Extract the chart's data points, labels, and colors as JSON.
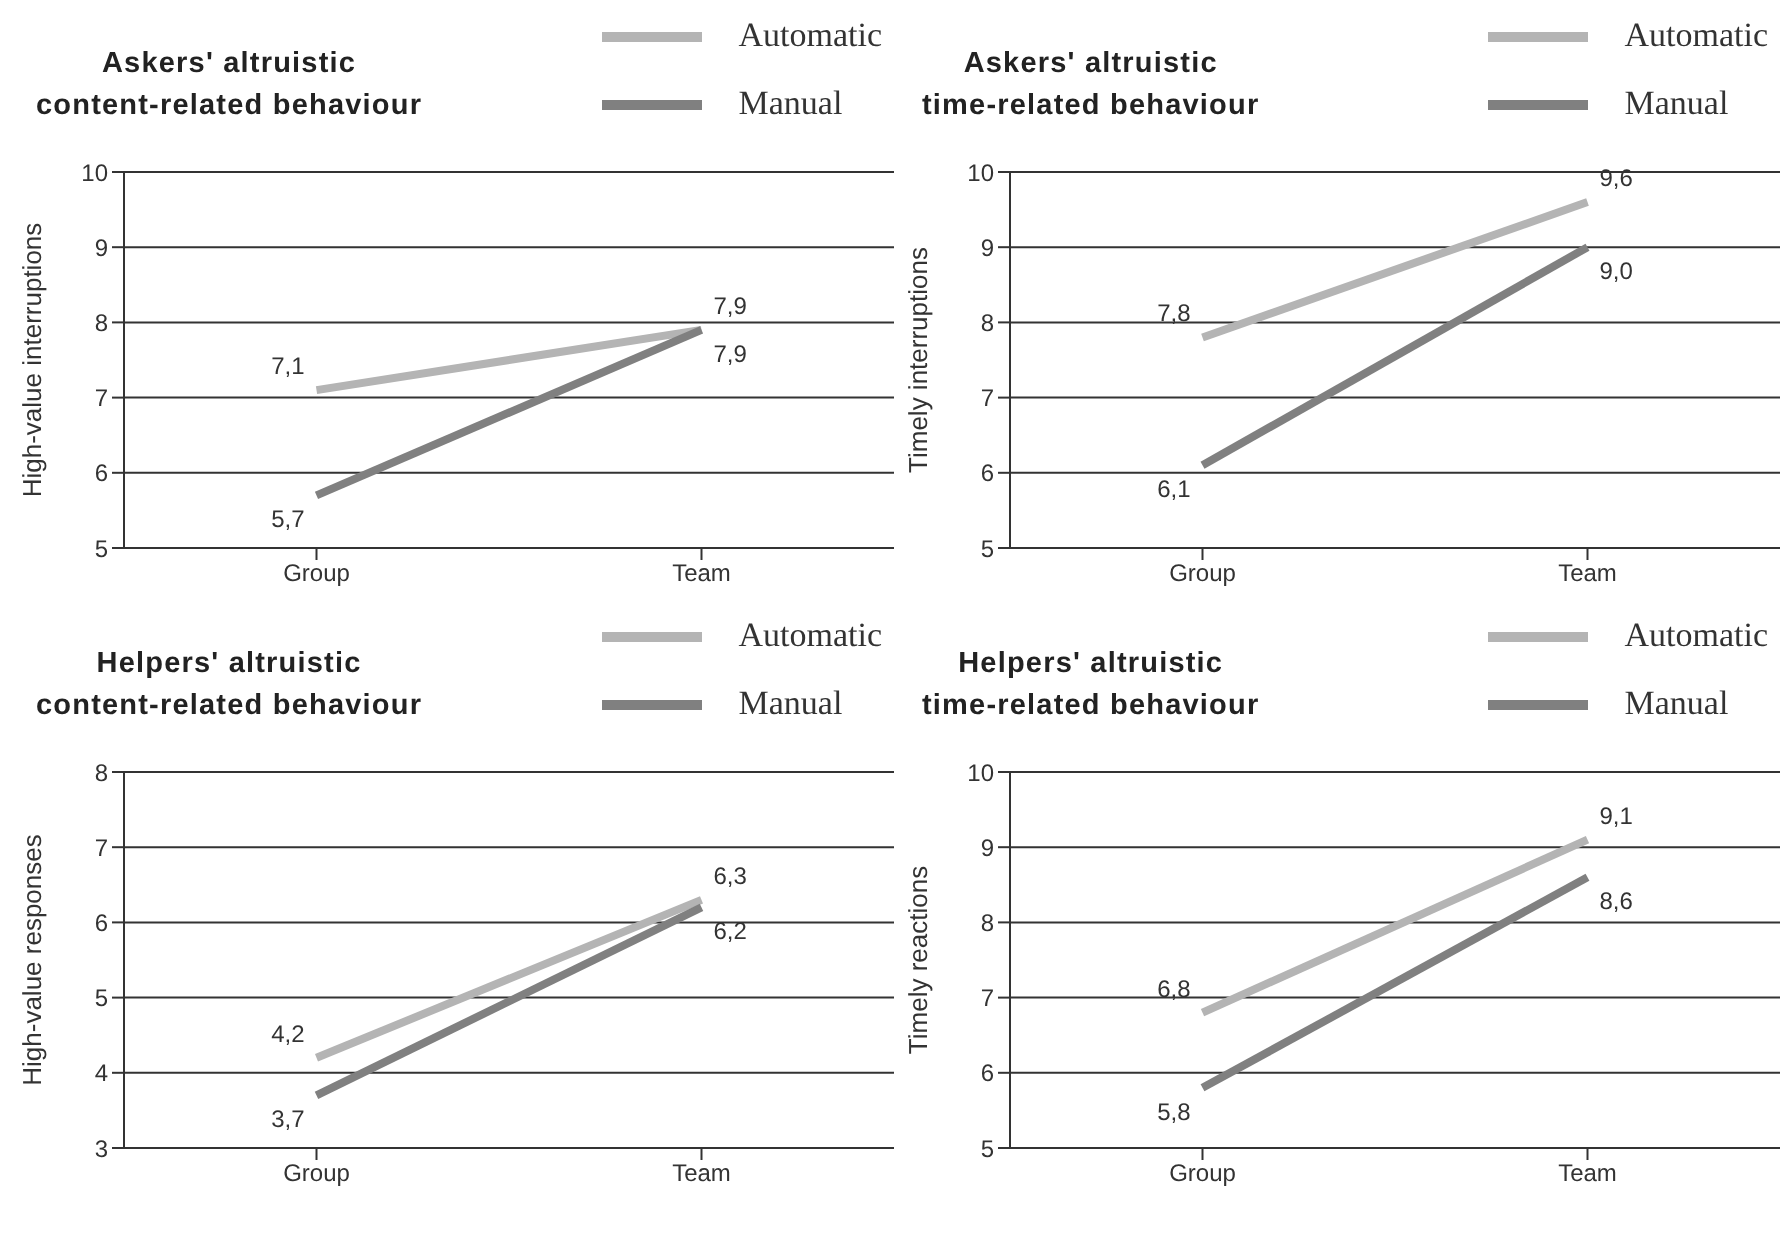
{
  "chart_data": [
    {
      "type": "line",
      "title": "Askers' altruistic\ncontent-related behaviour",
      "ylabel": "High-value interruptions",
      "categories": [
        "Group",
        "Team"
      ],
      "ylim": [
        5,
        10
      ],
      "yticks": [
        5,
        6,
        7,
        8,
        9,
        10
      ],
      "grid": "y",
      "legend": "top right",
      "marker": "none",
      "series": [
        {
          "name": "Automatic",
          "color": "#b4b4b4",
          "values": [
            7.1,
            7.9
          ],
          "value_labels": [
            "7,1",
            "7,9"
          ]
        },
        {
          "name": "Manual",
          "color": "#808080",
          "values": [
            5.7,
            7.9
          ],
          "value_labels": [
            "5,7",
            "7,9"
          ]
        }
      ]
    },
    {
      "type": "line",
      "title": "Askers' altruistic\ntime-related behaviour",
      "ylabel": "Timely interruptions",
      "categories": [
        "Group",
        "Team"
      ],
      "ylim": [
        5,
        10
      ],
      "yticks": [
        5,
        6,
        7,
        8,
        9,
        10
      ],
      "grid": "y",
      "legend": "top right",
      "marker": "none",
      "series": [
        {
          "name": "Automatic",
          "color": "#b4b4b4",
          "values": [
            7.8,
            9.6
          ],
          "value_labels": [
            "7,8",
            "9,6"
          ]
        },
        {
          "name": "Manual",
          "color": "#808080",
          "values": [
            6.1,
            9.0
          ],
          "value_labels": [
            "6,1",
            "9,0"
          ]
        }
      ]
    },
    {
      "type": "line",
      "title": "Helpers' altruistic\ncontent-related behaviour",
      "ylabel": "High-value responses",
      "categories": [
        "Group",
        "Team"
      ],
      "ylim": [
        3,
        8
      ],
      "yticks": [
        3,
        4,
        5,
        6,
        7,
        8
      ],
      "grid": "y",
      "legend": "top right",
      "marker": "none",
      "series": [
        {
          "name": "Automatic",
          "color": "#b4b4b4",
          "values": [
            4.2,
            6.3
          ],
          "value_labels": [
            "4,2",
            "6,3"
          ]
        },
        {
          "name": "Manual",
          "color": "#808080",
          "values": [
            3.7,
            6.2
          ],
          "value_labels": [
            "3,7",
            "6,2"
          ]
        }
      ]
    },
    {
      "type": "line",
      "title": "Helpers' altruistic\ntime-related behaviour",
      "ylabel": "Timely reactions",
      "categories": [
        "Group",
        "Team"
      ],
      "ylim": [
        5,
        10
      ],
      "yticks": [
        5,
        6,
        7,
        8,
        9,
        10
      ],
      "grid": "y",
      "legend": "top right",
      "marker": "none",
      "series": [
        {
          "name": "Automatic",
          "color": "#b4b4b4",
          "values": [
            6.8,
            9.1
          ],
          "value_labels": [
            "6,8",
            "9,1"
          ]
        },
        {
          "name": "Manual",
          "color": "#808080",
          "values": [
            5.8,
            8.6
          ],
          "value_labels": [
            "5,8",
            "8,6"
          ]
        }
      ]
    }
  ]
}
